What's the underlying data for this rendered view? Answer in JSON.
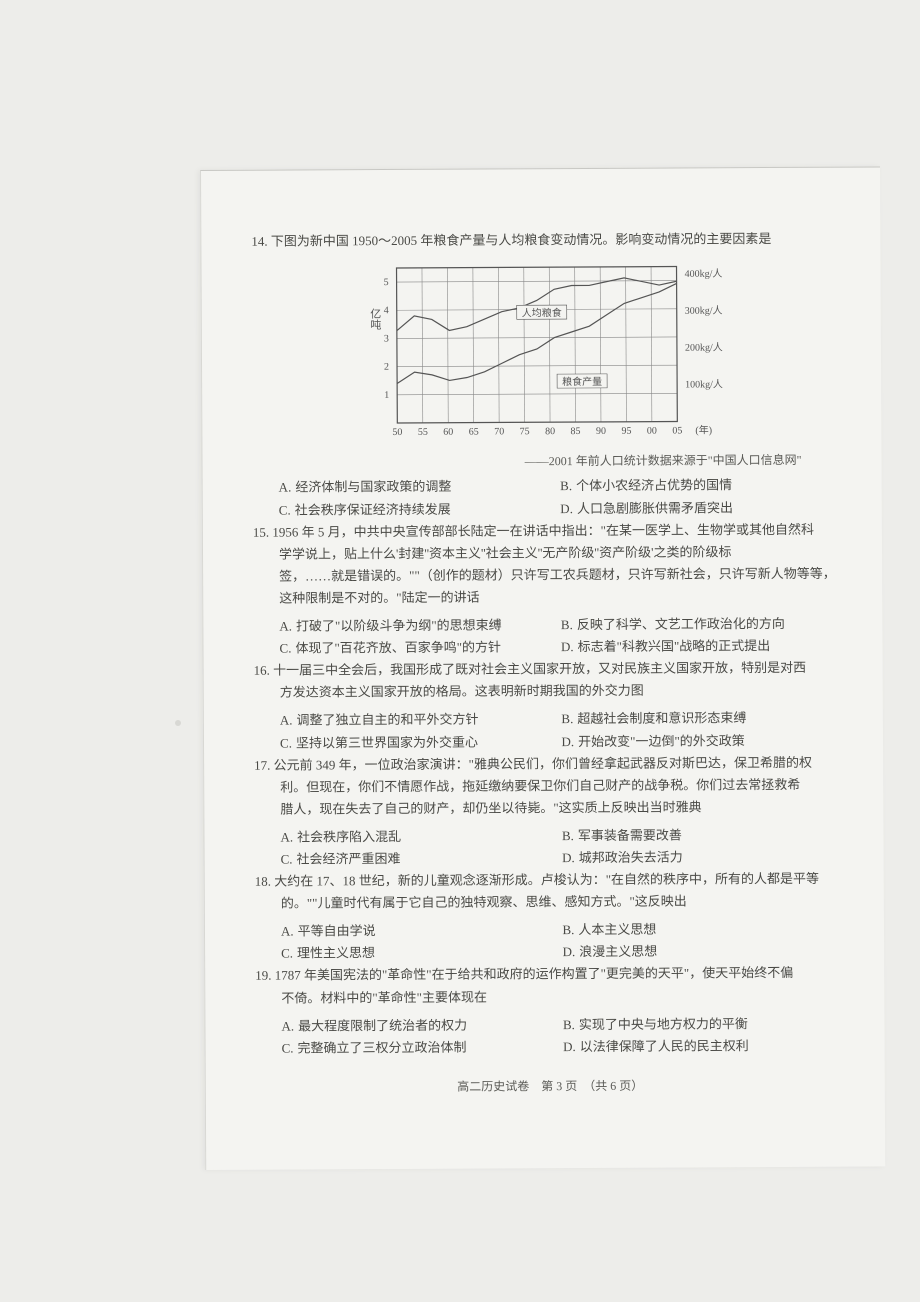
{
  "page": {
    "footer": "高二历史试卷　第 3 页　（共 6 页）"
  },
  "chart": {
    "type": "line",
    "y_left_label": "亿吨",
    "y_left_ticks": [
      "1",
      "2",
      "3",
      "4",
      "5"
    ],
    "y_right_ticks": [
      "100kg/人",
      "200kg/人",
      "300kg/人",
      "400kg/人"
    ],
    "x_ticks": [
      "50",
      "55",
      "60",
      "65",
      "70",
      "75",
      "80",
      "85",
      "90",
      "95",
      "00",
      "05"
    ],
    "x_unit": "(年)",
    "series": [
      {
        "name": "人均粮食",
        "values": [
          250,
          290,
          280,
          250,
          260,
          280,
          300,
          310,
          330,
          360,
          370,
          370,
          380,
          390,
          380,
          370,
          380
        ],
        "color": "#555",
        "width": 1.2
      },
      {
        "name": "粮食产量",
        "values": [
          1.4,
          1.8,
          1.7,
          1.5,
          1.6,
          1.8,
          2.1,
          2.4,
          2.6,
          3.0,
          3.2,
          3.4,
          3.8,
          4.2,
          4.4,
          4.6,
          4.9
        ],
        "color": "#555",
        "width": 1.2
      }
    ],
    "label_per_capita": "人均粮食",
    "label_output": "粮食产量",
    "grid_color": "#888",
    "background": "#f4f4f1"
  },
  "q14": {
    "num": "14.",
    "stem": "下图为新中国 1950～2005 年粮食产量与人均粮食变动情况。影响变动情况的主要因素是",
    "source": "——2001 年前人口统计数据来源于\"中国人口信息网\"",
    "opts": {
      "A": "经济体制与国家政策的调整",
      "B": "个体小农经济占优势的国情",
      "C": "社会秩序保证经济持续发展",
      "D": "人口急剧膨胀供需矛盾突出"
    }
  },
  "q15": {
    "num": "15.",
    "stem1": "1956 年 5 月，中共中央宣传部部长陆定一在讲话中指出：\"在某一医学上、生物学或其他自然科",
    "stem2": "学学说上，贴上什么'封建''资本主义''社会主义''无产阶级''资产阶级'之类的阶级标",
    "stem3": "签，……就是错误的。\"\"（创作的题材）只许写工农兵题材，只许写新社会，只许写新人物等等，",
    "stem4": "这种限制是不对的。\"陆定一的讲话",
    "opts": {
      "A": "打破了\"以阶级斗争为纲\"的思想束缚",
      "B": "反映了科学、文艺工作政治化的方向",
      "C": "体现了\"百花齐放、百家争鸣\"的方针",
      "D": "标志着\"科教兴国\"战略的正式提出"
    }
  },
  "q16": {
    "num": "16.",
    "stem1": "十一届三中全会后，我国形成了既对社会主义国家开放，又对民族主义国家开放，特别是对西",
    "stem2": "方发达资本主义国家开放的格局。这表明新时期我国的外交力图",
    "opts": {
      "A": "调整了独立自主的和平外交方针",
      "B": "超越社会制度和意识形态束缚",
      "C": "坚持以第三世界国家为外交重心",
      "D": "开始改变\"一边倒\"的外交政策"
    }
  },
  "q17": {
    "num": "17.",
    "stem1": "公元前 349 年，一位政治家演讲：\"雅典公民们，你们曾经拿起武器反对斯巴达，保卫希腊的权",
    "stem2": "利。但现在，你们不情愿作战，拖延缴纳要保卫你们自己财产的战争税。你们过去常拯救希",
    "stem3": "腊人，现在失去了自己的财产，却仍坐以待毙。\"这实质上反映出当时雅典",
    "opts": {
      "A": "社会秩序陷入混乱",
      "B": "军事装备需要改善",
      "C": "社会经济严重困难",
      "D": "城邦政治失去活力"
    }
  },
  "q18": {
    "num": "18.",
    "stem1": "大约在 17、18 世纪，新的儿童观念逐渐形成。卢梭认为：\"在自然的秩序中，所有的人都是平等",
    "stem2": "的。\"\"儿童时代有属于它自己的独特观察、思维、感知方式。\"这反映出",
    "opts": {
      "A": "平等自由学说",
      "B": "人本主义思想",
      "C": "理性主义思想",
      "D": "浪漫主义思想"
    }
  },
  "q19": {
    "num": "19.",
    "stem1": "1787 年美国宪法的\"革命性\"在于给共和政府的运作构置了\"更完美的天平\"，使天平始终不偏",
    "stem2": "不倚。材料中的\"革命性\"主要体现在",
    "opts": {
      "A": "最大程度限制了统治者的权力",
      "B": "实现了中央与地方权力的平衡",
      "C": "完整确立了三权分立政治体制",
      "D": "以法律保障了人民的民主权利"
    }
  }
}
